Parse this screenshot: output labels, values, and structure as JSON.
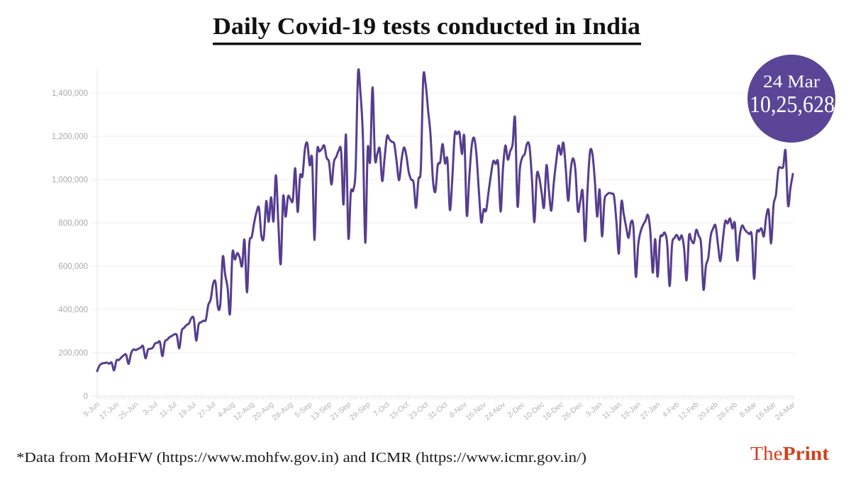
{
  "header": {
    "title": "Daily Covid-19 tests conducted in India"
  },
  "annotation": {
    "date": "24 Mar",
    "value": "10,25,628"
  },
  "footer": {
    "source": "*Data from MoHFW (https://www.mohfw.gov.in) and ICMR (https://www.icmr.gov.in/)",
    "logo_the": "The",
    "logo_print": "Print"
  },
  "colors": {
    "line": "#563d8f",
    "annotation_fill": "#5a4596",
    "brand": "#d2401d",
    "title_rule": "#111111"
  },
  "chart_data": {
    "type": "line",
    "title": "Daily Covid-19 tests conducted in India",
    "xlabel": "",
    "ylabel": "",
    "ylim": [
      0,
      1500000
    ],
    "grid": "horizontal",
    "legend": "none",
    "yticks": [
      0,
      200000,
      400000,
      600000,
      800000,
      1000000,
      1200000,
      1400000
    ],
    "ytick_labels": [
      "0",
      "200,000",
      "400,000",
      "600,000",
      "800,000",
      "1,000,000",
      "1,200,000",
      "1,400,000"
    ],
    "x_interval": "daily",
    "x_start": "9-Jun",
    "x_end": "24-Mar",
    "x_tick_every": 8,
    "x_tick_labels": [
      "9-Jun",
      "17-Jun",
      "25-Jun",
      "3-Jul",
      "11-Jul",
      "19-Jul",
      "27-Jul",
      "4-Aug",
      "12-Aug",
      "20-Aug",
      "28-Aug",
      "5-Sep",
      "13-Sep",
      "21-Sep",
      "29-Sep",
      "7-Oct",
      "15-Oct",
      "23-Oct",
      "31-Oct",
      "8-Nov",
      "16-Nov",
      "24-Nov",
      "2-Dec",
      "10-Dec",
      "18-Dec",
      "26-Dec",
      "3-Jan",
      "11-Jan",
      "19-Jan",
      "27-Jan",
      "4-Feb",
      "12-Feb",
      "20-Feb",
      "28-Feb",
      "8-Mar",
      "16-Mar",
      "24-Mar"
    ],
    "series": [
      {
        "name": "Daily Covid-19 tests",
        "values": [
          115000,
          141000,
          150000,
          152000,
          154000,
          149000,
          154000,
          118000,
          164000,
          166000,
          178000,
          188000,
          190000,
          148000,
          195000,
          215000,
          212000,
          218000,
          223000,
          230000,
          174000,
          213000,
          218000,
          223000,
          243000,
          246000,
          249000,
          184000,
          249000,
          260000,
          272000,
          278000,
          285000,
          280000,
          220000,
          300000,
          315000,
          328000,
          335000,
          360000,
          357000,
          256000,
          330000,
          340000,
          348000,
          352000,
          420000,
          446000,
          518000,
          525000,
          410000,
          426000,
          643000,
          560000,
          500000,
          380000,
          659000,
          630000,
          660000,
          640000,
          600000,
          721000,
          479000,
          705000,
          735000,
          800000,
          850000,
          869000,
          740000,
          735000,
          900000,
          805000,
          918000,
          807000,
          1020000,
          800000,
          610000,
          921000,
          828000,
          921000,
          910000,
          905000,
          1052000,
          850000,
          1016000,
          1016000,
          1140000,
          1167000,
          1066000,
          1092000,
          721000,
          1118000,
          1130000,
          1141000,
          1157000,
          1100000,
          1080000,
          977000,
          1080000,
          1105000,
          1134000,
          1131000,
          885000,
          1207000,
          731000,
          940000,
          950000,
          1050000,
          1492000,
          1400000,
          1200000,
          708000,
          1141000,
          1085000,
          1426000,
          1098000,
          1120000,
          1141000,
          993000,
          1100000,
          1200000,
          1185000,
          1174000,
          1164000,
          1080000,
          997000,
          1090000,
          1148000,
          1110000,
          1033000,
          1000000,
          985000,
          869000,
          1000000,
          1052000,
          1469000,
          1440000,
          1320000,
          1207000,
          1000000,
          944000,
          1066000,
          1080000,
          1164000,
          1075000,
          1092000,
          860000,
          1000000,
          1207000,
          1210000,
          1216000,
          1118000,
          1197000,
          836000,
          1000000,
          1150000,
          1193000,
          1118000,
          950000,
          803000,
          862000,
          856000,
          940000,
          1020000,
          1085000,
          1072000,
          1075000,
          852000,
          1050000,
          1157000,
          1092000,
          1131000,
          1164000,
          1282000,
          879000,
          1050000,
          1102000,
          1118000,
          1167000,
          1151000,
          1000000,
          803000,
          1020000,
          1010000,
          940000,
          872000,
          1066000,
          950000,
          856000,
          980000,
          1080000,
          1157000,
          1115000,
          1170000,
          1050000,
          902000,
          1040000,
          1098000,
          1040000,
          856000,
          900000,
          944000,
          715000,
          950000,
          1125000,
          1120000,
          1000000,
          829000,
          954000,
          738000,
          902000,
          930000,
          938000,
          935000,
          921000,
          800000,
          659000,
          895000,
          840000,
          780000,
          731000,
          803000,
          780000,
          551000,
          700000,
          760000,
          790000,
          810000,
          836000,
          760000,
          570000,
          725000,
          551000,
          725000,
          740000,
          754000,
          700000,
          508000,
          700000,
          730000,
          744000,
          721000,
          741000,
          680000,
          534000,
          738000,
          720000,
          708000,
          767000,
          740000,
          702000,
          492000,
          600000,
          640000,
          740000,
          774000,
          787000,
          700000,
          623000,
          720000,
          807000,
          797000,
          820000,
          774000,
          797000,
          626000,
          740000,
          787000,
          770000,
          757000,
          748000,
          741000,
          541000,
          748000,
          760000,
          774000,
          738000,
          830000,
          856000,
          705000,
          880000,
          930000,
          1046000,
          1055000,
          1059000,
          1131000,
          882000,
          960000,
          1025628
        ]
      }
    ],
    "annotations": [
      {
        "label": "24 Mar",
        "value": 1025628,
        "text": "10,25,628"
      }
    ],
    "note": "*Data from MoHFW (https://www.mohfw.gov.in) and ICMR (https://www.icmr.gov.in/)"
  }
}
